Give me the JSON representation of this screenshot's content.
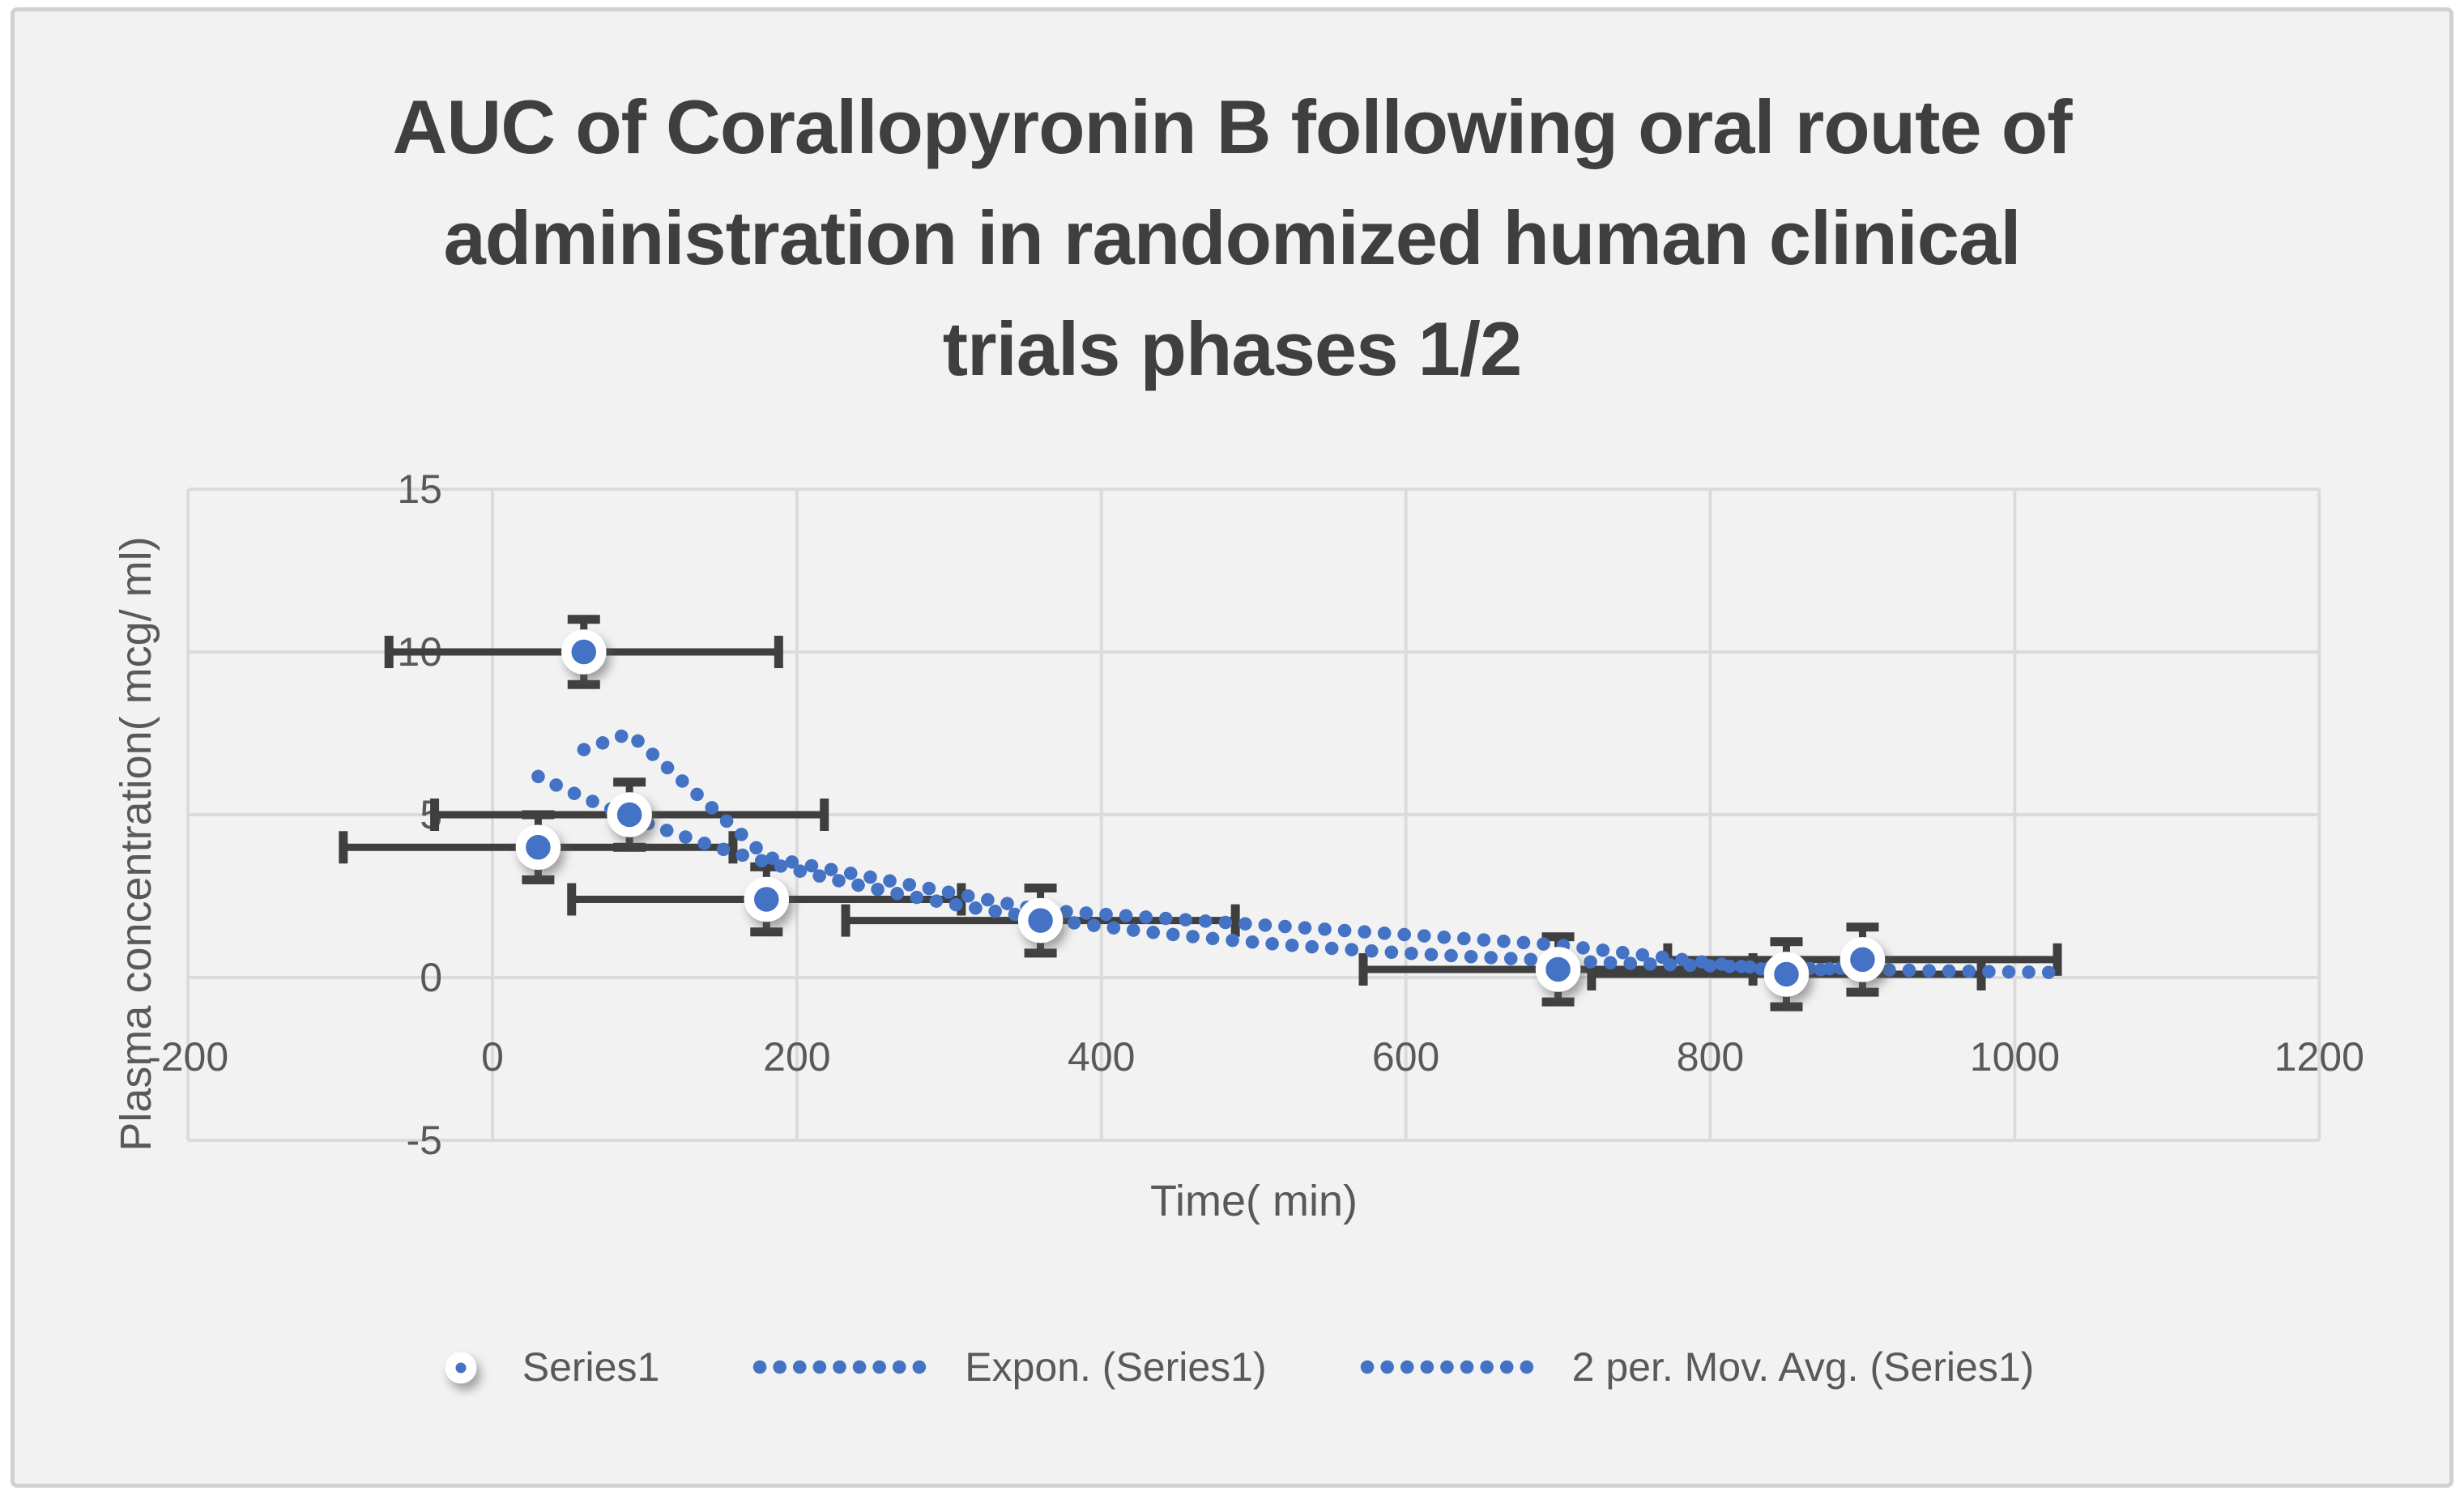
{
  "title_lines": [
    "AUC of Corallopyronin B following oral route of",
    "administration in randomized human clinical",
    "trials phases 1/2"
  ],
  "axes": {
    "x_label": "Time( min)",
    "y_label": "Plasma concentration( mcg/ ml)",
    "x_ticks": [
      -200,
      0,
      200,
      400,
      600,
      800,
      1000,
      1200
    ],
    "y_ticks": [
      -5,
      0,
      5,
      10,
      15
    ]
  },
  "legend": [
    {
      "label": "Series1",
      "marker": "dot"
    },
    {
      "label": "Expon. (Series1)",
      "marker": "dotted-line"
    },
    {
      "label": "2 per. Mov. Avg. (Series1)",
      "marker": "dotted-line"
    }
  ],
  "colors": {
    "series": "#4472C4",
    "error_bar": "#3F3F3F",
    "grid": "#DBDBDB",
    "tick_text": "#595959",
    "axis_title_text": "#595959",
    "title_text": "#3F3F3F",
    "legend_text": "#595959",
    "background": "#F2F2F2",
    "frame_border": "#D1D1D1",
    "page": "#FFFFFF"
  },
  "chart_data": {
    "type": "scatter",
    "title": "AUC of Corallopyronin B following oral route of administration in randomized human clinical trials phases 1/2",
    "xlabel": "Time( min)",
    "ylabel": "Plasma concentration( mcg/ ml)",
    "xlim": [
      -200,
      1200
    ],
    "ylim": [
      -5,
      15
    ],
    "x_ticks": [
      -200,
      0,
      200,
      400,
      600,
      800,
      1000,
      1200
    ],
    "y_ticks": [
      -5,
      0,
      5,
      10,
      15
    ],
    "grid": true,
    "legend_position": "bottom",
    "series": [
      {
        "name": "Series1",
        "type": "points",
        "points": [
          [
            30,
            4
          ],
          [
            60,
            10
          ],
          [
            90,
            5
          ],
          [
            180,
            2.4
          ],
          [
            360,
            1.75
          ],
          [
            700,
            0.25
          ],
          [
            850,
            0.1
          ],
          [
            900,
            0.55
          ]
        ],
        "x_error": 128,
        "y_error": 1.0
      }
    ],
    "trendlines": [
      {
        "name": "Expon. (Series1)",
        "type": "exponential",
        "a": 6.9,
        "b": -0.0037,
        "x_range": [
          30,
          1030
        ]
      },
      {
        "name": "2 per. Mov. Avg. (Series1)",
        "type": "moving_average",
        "period": 2
      }
    ]
  }
}
